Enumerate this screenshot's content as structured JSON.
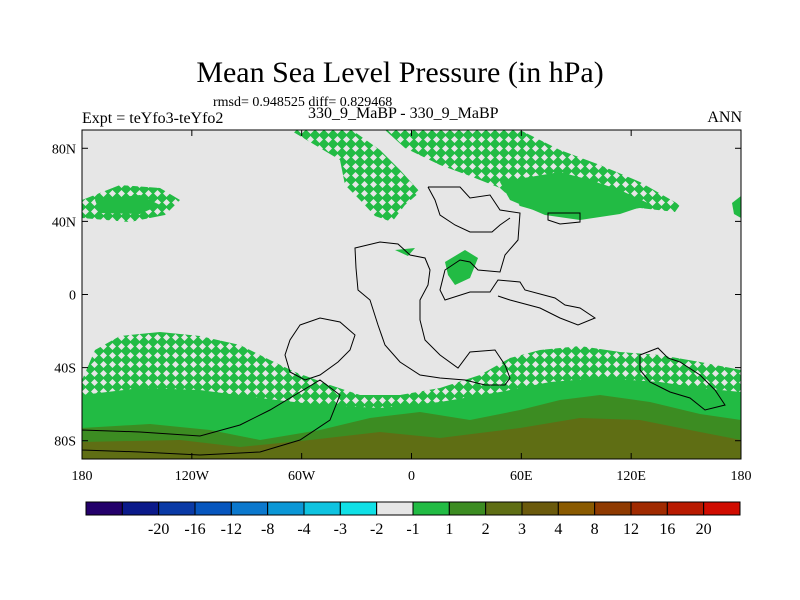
{
  "title": "Mean Sea Level Pressure (in hPa)",
  "stats": "rmsd= 0.948525 diff= 0.829468",
  "subtitle": "330_9_MaBP - 330_9_MaBP",
  "experiment": "Expt = teYfo3-teYfo2",
  "season": "ANN",
  "map": {
    "lat_range": [
      -90,
      90
    ],
    "lon_range": [
      -180,
      180
    ],
    "y_ticks": [
      {
        "value": 80,
        "label": "80N"
      },
      {
        "value": 40,
        "label": "40N"
      },
      {
        "value": 0,
        "label": "0"
      },
      {
        "value": -40,
        "label": "40S"
      },
      {
        "value": -80,
        "label": "80S"
      }
    ],
    "x_ticks": [
      {
        "value": -180,
        "label": "180"
      },
      {
        "value": -120,
        "label": "120W"
      },
      {
        "value": -60,
        "label": "60W"
      },
      {
        "value": 0,
        "label": "0"
      },
      {
        "value": 60,
        "label": "60E"
      },
      {
        "value": 120,
        "label": "120E"
      },
      {
        "value": 180,
        "label": "180"
      }
    ]
  },
  "colorbar": {
    "colors": [
      "#24006b",
      "#0b1a8a",
      "#0a3aa6",
      "#0656be",
      "#0b78cd",
      "#0b97d6",
      "#0fc3e0",
      "#10e0e6",
      "#e6e6e6",
      "#22bb44",
      "#3c8c22",
      "#5f6e14",
      "#6b5a0c",
      "#8a5a00",
      "#8f3a00",
      "#a02a00",
      "#b81a00",
      "#d00c00"
    ],
    "labels": [
      "-20",
      "-16",
      "-12",
      "-8",
      "-4",
      "-3",
      "-2",
      "-1",
      "1",
      "2",
      "3",
      "4",
      "8",
      "12",
      "16",
      "20"
    ]
  },
  "colors": {
    "background": "#e6e6e6",
    "level_2": "#22bb44",
    "level_3": "#3c8c22",
    "level_4": "#5f6e14"
  }
}
